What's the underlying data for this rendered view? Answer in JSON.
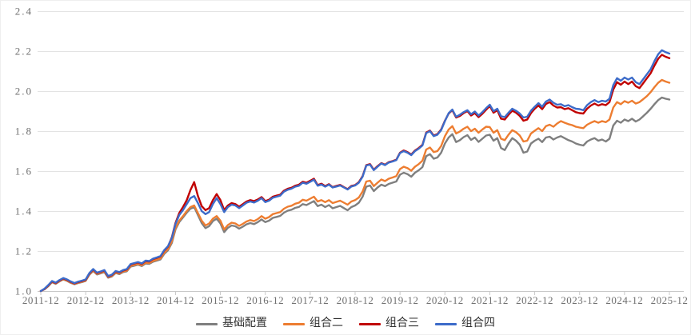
{
  "chart_data": {
    "type": "line",
    "title": "",
    "xlabel": "",
    "ylabel": "",
    "x_start": "2011-12",
    "x_end": "2025-12",
    "x_step_per_point": "1 month",
    "x_tick_labels": [
      "2011-12",
      "2012-12",
      "2013-12",
      "2014-12",
      "2015-12",
      "2016-12",
      "2017-12",
      "2018-12",
      "2019-12",
      "2020-12",
      "2021-12",
      "2022-12",
      "2023-12",
      "2024-12",
      "2025-12"
    ],
    "y_tick_labels": [
      "1.0",
      "1.2",
      "1.4",
      "1.6",
      "1.8",
      "2.0",
      "2.2",
      "2.4"
    ],
    "y_ticks": [
      1.0,
      1.2,
      1.4,
      1.6,
      1.8,
      2.0,
      2.2,
      2.4
    ],
    "ylim": [
      1.0,
      2.4
    ],
    "grid": "horizontal",
    "legend_position": "bottom",
    "colors": {
      "gridline": "#E3E3E3",
      "axis_line": "#C8C8C8",
      "tick_text": "#6f6f6f",
      "legend_text": "#333333"
    },
    "series": [
      {
        "name": "基础配置",
        "color": "#7F7F7F",
        "values": [
          1.0,
          1.009,
          1.024,
          1.044,
          1.036,
          1.048,
          1.058,
          1.051,
          1.041,
          1.034,
          1.04,
          1.045,
          1.051,
          1.082,
          1.1,
          1.083,
          1.089,
          1.095,
          1.067,
          1.073,
          1.09,
          1.085,
          1.095,
          1.099,
          1.122,
          1.127,
          1.132,
          1.125,
          1.138,
          1.136,
          1.147,
          1.152,
          1.158,
          1.186,
          1.204,
          1.24,
          1.308,
          1.345,
          1.368,
          1.392,
          1.412,
          1.42,
          1.38,
          1.34,
          1.315,
          1.325,
          1.35,
          1.362,
          1.338,
          1.295,
          1.316,
          1.328,
          1.324,
          1.312,
          1.322,
          1.334,
          1.34,
          1.335,
          1.345,
          1.358,
          1.345,
          1.352,
          1.366,
          1.371,
          1.376,
          1.392,
          1.402,
          1.407,
          1.416,
          1.421,
          1.435,
          1.43,
          1.44,
          1.45,
          1.425,
          1.432,
          1.42,
          1.43,
          1.414,
          1.42,
          1.426,
          1.415,
          1.404,
          1.42,
          1.428,
          1.442,
          1.472,
          1.522,
          1.528,
          1.5,
          1.518,
          1.532,
          1.525,
          1.536,
          1.542,
          1.548,
          1.582,
          1.592,
          1.585,
          1.572,
          1.592,
          1.604,
          1.62,
          1.675,
          1.685,
          1.662,
          1.668,
          1.692,
          1.738,
          1.768,
          1.785,
          1.745,
          1.755,
          1.77,
          1.78,
          1.756,
          1.768,
          1.746,
          1.762,
          1.778,
          1.782,
          1.752,
          1.765,
          1.715,
          1.705,
          1.738,
          1.765,
          1.752,
          1.732,
          1.692,
          1.698,
          1.738,
          1.752,
          1.762,
          1.745,
          1.768,
          1.772,
          1.758,
          1.768,
          1.775,
          1.765,
          1.755,
          1.748,
          1.738,
          1.732,
          1.728,
          1.748,
          1.758,
          1.765,
          1.752,
          1.758,
          1.748,
          1.762,
          1.828,
          1.852,
          1.842,
          1.858,
          1.85,
          1.862,
          1.848,
          1.858,
          1.875,
          1.892,
          1.912,
          1.935,
          1.955,
          1.968,
          1.962,
          1.958
        ]
      },
      {
        "name": "组合二",
        "color": "#ED7D31",
        "values": [
          1.0,
          1.01,
          1.026,
          1.046,
          1.038,
          1.05,
          1.06,
          1.053,
          1.043,
          1.036,
          1.042,
          1.047,
          1.053,
          1.084,
          1.103,
          1.086,
          1.092,
          1.098,
          1.07,
          1.076,
          1.093,
          1.088,
          1.098,
          1.102,
          1.126,
          1.131,
          1.136,
          1.129,
          1.142,
          1.14,
          1.151,
          1.157,
          1.163,
          1.192,
          1.21,
          1.248,
          1.315,
          1.352,
          1.375,
          1.4,
          1.42,
          1.428,
          1.39,
          1.352,
          1.328,
          1.338,
          1.362,
          1.375,
          1.352,
          1.308,
          1.33,
          1.342,
          1.338,
          1.326,
          1.336,
          1.348,
          1.355,
          1.35,
          1.36,
          1.375,
          1.362,
          1.37,
          1.385,
          1.39,
          1.395,
          1.412,
          1.422,
          1.427,
          1.437,
          1.442,
          1.457,
          1.452,
          1.462,
          1.472,
          1.448,
          1.455,
          1.445,
          1.455,
          1.44,
          1.446,
          1.452,
          1.442,
          1.432,
          1.448,
          1.455,
          1.468,
          1.498,
          1.548,
          1.552,
          1.525,
          1.542,
          1.558,
          1.55,
          1.562,
          1.568,
          1.575,
          1.61,
          1.622,
          1.615,
          1.602,
          1.622,
          1.635,
          1.652,
          1.708,
          1.718,
          1.695,
          1.7,
          1.725,
          1.775,
          1.808,
          1.825,
          1.788,
          1.798,
          1.812,
          1.822,
          1.8,
          1.812,
          1.792,
          1.808,
          1.822,
          1.82,
          1.792,
          1.805,
          1.762,
          1.755,
          1.782,
          1.805,
          1.795,
          1.778,
          1.748,
          1.752,
          1.788,
          1.802,
          1.815,
          1.8,
          1.825,
          1.832,
          1.822,
          1.838,
          1.85,
          1.842,
          1.835,
          1.83,
          1.822,
          1.818,
          1.815,
          1.832,
          1.842,
          1.85,
          1.842,
          1.85,
          1.845,
          1.858,
          1.918,
          1.945,
          1.935,
          1.95,
          1.942,
          1.952,
          1.938,
          1.945,
          1.96,
          1.975,
          1.995,
          2.02,
          2.042,
          2.056,
          2.048,
          2.042
        ]
      },
      {
        "name": "组合三",
        "color": "#C00000",
        "values": [
          1.0,
          1.01,
          1.028,
          1.048,
          1.04,
          1.053,
          1.063,
          1.056,
          1.046,
          1.038,
          1.045,
          1.05,
          1.056,
          1.088,
          1.108,
          1.09,
          1.096,
          1.103,
          1.073,
          1.08,
          1.098,
          1.093,
          1.103,
          1.108,
          1.133,
          1.138,
          1.143,
          1.136,
          1.15,
          1.148,
          1.16,
          1.166,
          1.173,
          1.203,
          1.223,
          1.268,
          1.34,
          1.39,
          1.42,
          1.455,
          1.505,
          1.545,
          1.475,
          1.425,
          1.405,
          1.415,
          1.455,
          1.485,
          1.455,
          1.405,
          1.428,
          1.44,
          1.435,
          1.422,
          1.435,
          1.448,
          1.455,
          1.45,
          1.458,
          1.47,
          1.45,
          1.457,
          1.472,
          1.477,
          1.482,
          1.502,
          1.512,
          1.517,
          1.527,
          1.532,
          1.547,
          1.542,
          1.552,
          1.562,
          1.53,
          1.537,
          1.525,
          1.535,
          1.52,
          1.526,
          1.531,
          1.52,
          1.51,
          1.526,
          1.53,
          1.545,
          1.575,
          1.63,
          1.635,
          1.607,
          1.625,
          1.64,
          1.632,
          1.645,
          1.65,
          1.657,
          1.692,
          1.703,
          1.695,
          1.683,
          1.703,
          1.715,
          1.731,
          1.793,
          1.803,
          1.778,
          1.785,
          1.808,
          1.852,
          1.888,
          1.905,
          1.868,
          1.876,
          1.89,
          1.9,
          1.878,
          1.89,
          1.87,
          1.887,
          1.907,
          1.926,
          1.892,
          1.905,
          1.862,
          1.858,
          1.882,
          1.902,
          1.892,
          1.876,
          1.852,
          1.858,
          1.89,
          1.912,
          1.928,
          1.91,
          1.936,
          1.945,
          1.928,
          1.918,
          1.92,
          1.91,
          1.915,
          1.905,
          1.895,
          1.89,
          1.888,
          1.912,
          1.928,
          1.938,
          1.928,
          1.935,
          1.93,
          1.945,
          2.008,
          2.045,
          2.032,
          2.048,
          2.035,
          2.048,
          2.025,
          2.015,
          2.04,
          2.065,
          2.09,
          2.128,
          2.162,
          2.182,
          2.172,
          2.165
        ]
      },
      {
        "name": "组合四",
        "color": "#3C6BC9",
        "values": [
          1.0,
          1.012,
          1.03,
          1.05,
          1.042,
          1.055,
          1.065,
          1.058,
          1.048,
          1.04,
          1.047,
          1.052,
          1.058,
          1.09,
          1.11,
          1.092,
          1.098,
          1.105,
          1.075,
          1.082,
          1.1,
          1.095,
          1.105,
          1.11,
          1.135,
          1.14,
          1.145,
          1.138,
          1.152,
          1.15,
          1.162,
          1.168,
          1.175,
          1.205,
          1.225,
          1.265,
          1.335,
          1.38,
          1.405,
          1.435,
          1.465,
          1.475,
          1.44,
          1.4,
          1.385,
          1.395,
          1.435,
          1.465,
          1.435,
          1.395,
          1.42,
          1.432,
          1.428,
          1.415,
          1.428,
          1.442,
          1.448,
          1.443,
          1.452,
          1.465,
          1.445,
          1.452,
          1.467,
          1.472,
          1.477,
          1.497,
          1.507,
          1.512,
          1.522,
          1.527,
          1.542,
          1.537,
          1.547,
          1.557,
          1.527,
          1.533,
          1.522,
          1.532,
          1.518,
          1.523,
          1.528,
          1.518,
          1.508,
          1.523,
          1.528,
          1.542,
          1.572,
          1.628,
          1.632,
          1.605,
          1.622,
          1.638,
          1.63,
          1.643,
          1.648,
          1.655,
          1.69,
          1.7,
          1.692,
          1.68,
          1.7,
          1.712,
          1.728,
          1.79,
          1.8,
          1.775,
          1.782,
          1.805,
          1.85,
          1.89,
          1.908,
          1.872,
          1.882,
          1.895,
          1.905,
          1.885,
          1.898,
          1.878,
          1.895,
          1.915,
          1.932,
          1.9,
          1.912,
          1.875,
          1.87,
          1.892,
          1.912,
          1.902,
          1.888,
          1.868,
          1.872,
          1.902,
          1.922,
          1.94,
          1.922,
          1.948,
          1.958,
          1.942,
          1.932,
          1.935,
          1.925,
          1.93,
          1.92,
          1.912,
          1.91,
          1.905,
          1.93,
          1.945,
          1.955,
          1.945,
          1.952,
          1.948,
          1.962,
          2.03,
          2.065,
          2.052,
          2.068,
          2.058,
          2.068,
          2.045,
          2.035,
          2.06,
          2.085,
          2.11,
          2.15,
          2.185,
          2.205,
          2.195,
          2.188
        ]
      }
    ]
  }
}
